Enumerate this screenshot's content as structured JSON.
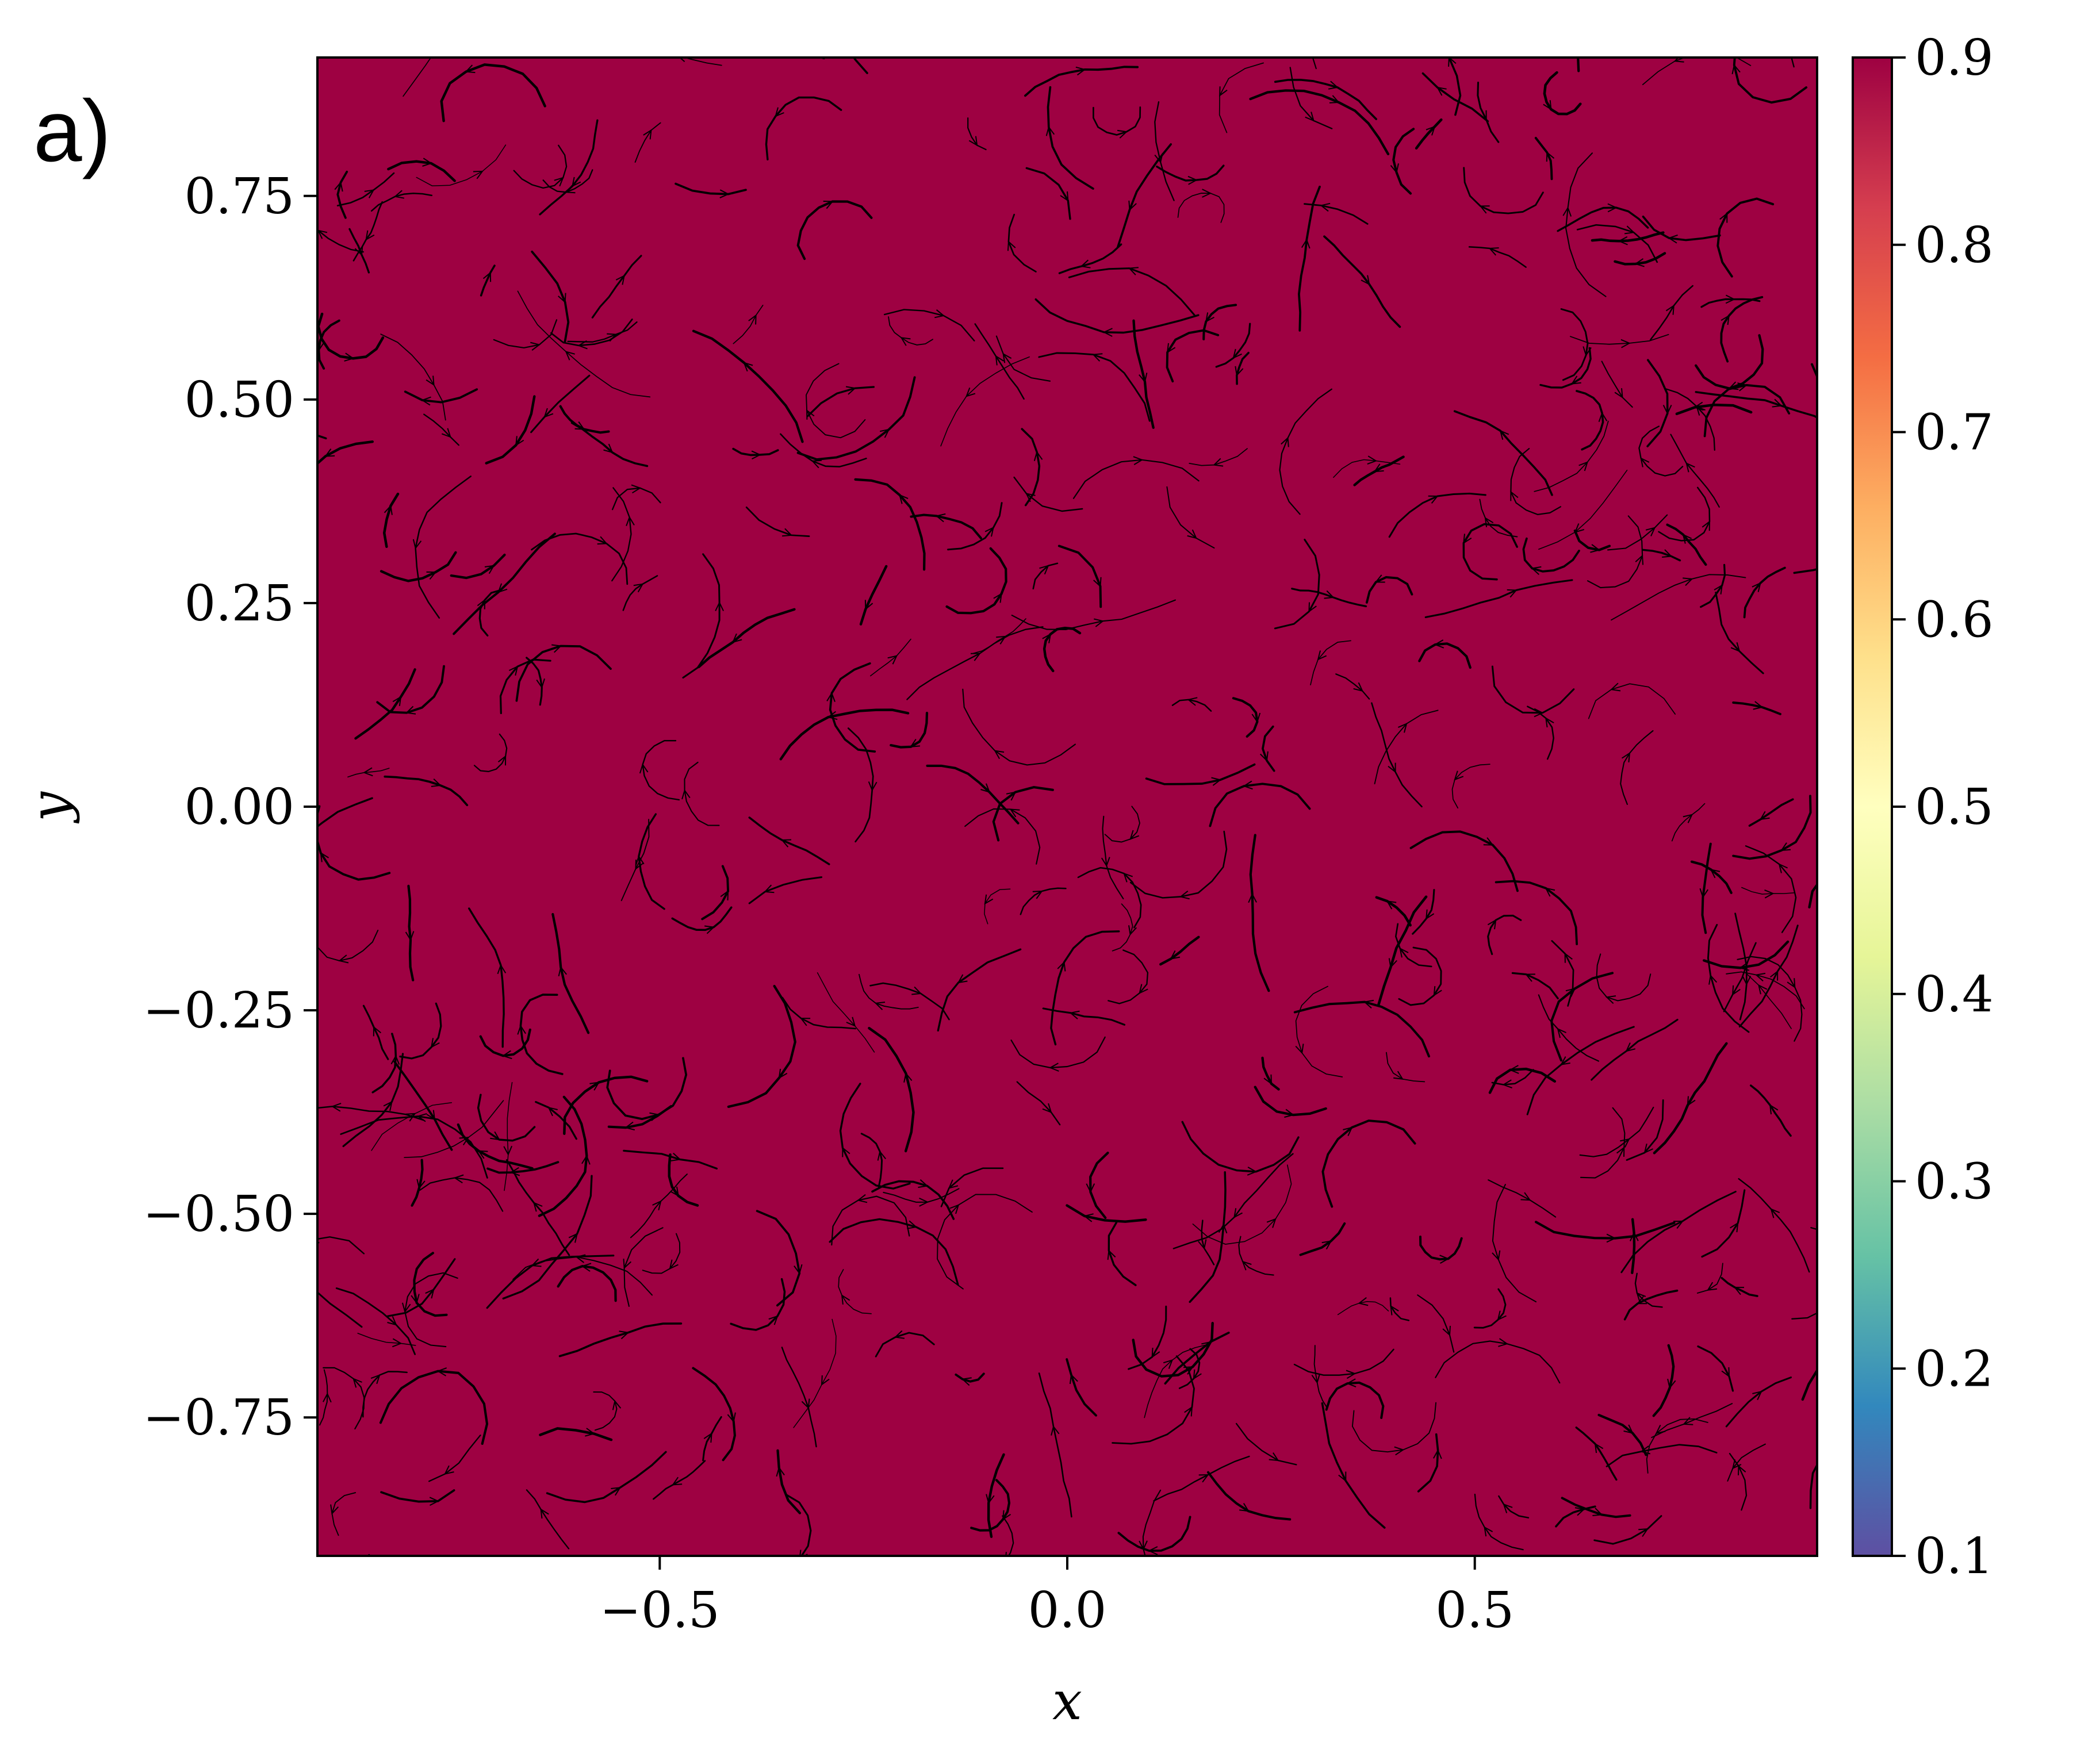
{
  "chart_data": {
    "type": "heatmap",
    "panel_label": "a)",
    "xlabel": "x",
    "ylabel": "y",
    "xlim": [
      -0.92,
      0.92
    ],
    "ylim": [
      -0.92,
      0.92
    ],
    "x_ticks": [
      -0.5,
      0.0,
      0.5
    ],
    "x_tick_labels": [
      "−0.5",
      "0.0",
      "0.5"
    ],
    "y_ticks": [
      0.75,
      0.5,
      0.25,
      0.0,
      -0.25,
      -0.5,
      -0.75
    ],
    "y_tick_labels": [
      "0.75",
      "0.50",
      "0.25",
      "0.00",
      "−0.25",
      "−0.50",
      "−0.75"
    ],
    "field_value": 0.9,
    "field_color": "#9e0142",
    "overlay": "short black streamlines with arrowheads scattered across the domain",
    "colorbar": {
      "colormap": "Spectral_r",
      "range": [
        0.1,
        0.9
      ],
      "ticks": [
        0.9,
        0.8,
        0.7,
        0.6,
        0.5,
        0.4,
        0.3,
        0.2,
        0.1
      ],
      "tick_labels": [
        "0.9",
        "0.8",
        "0.7",
        "0.6",
        "0.5",
        "0.4",
        "0.3",
        "0.2",
        "0.1"
      ],
      "stops": [
        {
          "value": 0.0,
          "color": "#5e4fa2"
        },
        {
          "value": 0.1,
          "color": "#3288bd"
        },
        {
          "value": 0.2,
          "color": "#66c2a5"
        },
        {
          "value": 0.3,
          "color": "#abdda4"
        },
        {
          "value": 0.4,
          "color": "#e6f598"
        },
        {
          "value": 0.5,
          "color": "#ffffbf"
        },
        {
          "value": 0.6,
          "color": "#fee08b"
        },
        {
          "value": 0.7,
          "color": "#fdae61"
        },
        {
          "value": 0.8,
          "color": "#f46d43"
        },
        {
          "value": 0.9,
          "color": "#d53e4f"
        },
        {
          "value": 1.0,
          "color": "#9e0142"
        }
      ]
    }
  }
}
